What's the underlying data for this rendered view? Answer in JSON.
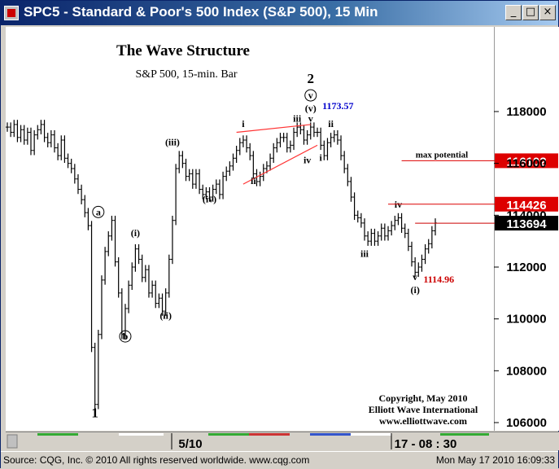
{
  "window": {
    "title": "SPC5 - Standard & Poor's 500 Index (S&P 500), 15 Min",
    "buttons": {
      "minimize": "_",
      "maximize": "□",
      "close": "×"
    }
  },
  "status": {
    "left": "Source: CQG, Inc. © 2010 All rights reserved worldwide. www.cqg.com",
    "right": "Mon May 17 2010 16:09:33"
  },
  "chart_data": {
    "type": "line",
    "title": "The Wave Structure",
    "subtitle": "S&P 500, 15-min. Bar",
    "copyright": [
      "Copyright, May 2010",
      "Elliott Wave International",
      "www.elliottwave.com"
    ],
    "ylim": [
      105500,
      120400
    ],
    "y_ticks": [
      106000,
      108000,
      110000,
      112000,
      114000,
      116000,
      118000
    ],
    "y_tick_labels": [
      "106000",
      "108000",
      "110000",
      "112000",
      "114000",
      "116000",
      "118000"
    ],
    "x_labels": [
      "5/10",
      "17 - 08 : 30"
    ],
    "series": [
      {
        "values": [
          117400,
          117200,
          117500,
          117000,
          117300,
          116900,
          117200,
          116500,
          117100,
          117300,
          117500,
          117000,
          116800,
          117100,
          116600,
          116300,
          116900,
          116200,
          116000,
          115800,
          115400,
          115000,
          114600,
          114100,
          113600,
          108900,
          106700,
          109400,
          111500,
          112600,
          113200,
          113800,
          112200,
          111000,
          109400,
          110400,
          111300,
          112000,
          112700,
          112300,
          111600,
          111900,
          111000,
          111300,
          110600,
          110800,
          110300,
          111000,
          112300,
          113800,
          115800,
          116300,
          116000,
          115500,
          115600,
          115200,
          115600,
          115000,
          114800,
          114900,
          114700,
          115000,
          115200,
          114800,
          115500,
          115700,
          115900,
          116200,
          116500,
          116800,
          116900,
          116600,
          116300,
          115600,
          115300,
          115500,
          115800,
          115900,
          116200,
          116600,
          116800,
          117000,
          117000,
          116600,
          116700,
          117200,
          117400,
          117300,
          116900,
          117100,
          117400,
          117200,
          117200,
          116700,
          116300,
          116800,
          117000,
          117100,
          116900,
          116300,
          115800,
          115300,
          114700,
          114000,
          113900,
          113700,
          113200,
          113000,
          113300,
          113000,
          113200,
          113500,
          113200,
          113400,
          113600,
          113800,
          113900,
          113500,
          113300,
          112800,
          112200,
          111800,
          112000,
          112300,
          112700,
          112900,
          113400,
          113700
        ]
      }
    ],
    "wave_labels": [
      {
        "text": "1",
        "x": 26,
        "y": 106200
      },
      {
        "text": "a",
        "x": 27,
        "y": 114000
      },
      {
        "text": "b",
        "x": 35,
        "y": 109200
      },
      {
        "text": "(i)",
        "x": 38,
        "y": 113200
      },
      {
        "text": "(ii)",
        "x": 47,
        "y": 110000
      },
      {
        "text": "(iii)",
        "x": 49,
        "y": 116700
      },
      {
        "text": "(iv)",
        "x": 60,
        "y": 114500
      },
      {
        "text": "i",
        "x": 70,
        "y": 117400
      },
      {
        "text": "ii",
        "x": 73,
        "y": 115200
      },
      {
        "text": "iii",
        "x": 86,
        "y": 117600
      },
      {
        "text": "iv",
        "x": 89,
        "y": 116000
      },
      {
        "text": "v",
        "x": 90,
        "y": 117600
      },
      {
        "text": "(v)",
        "x": 90,
        "y": 118000
      },
      {
        "text": "v",
        "x": 90,
        "y": 118500
      },
      {
        "text": "2",
        "x": 90,
        "y": 119100
      },
      {
        "text": "i",
        "x": 93,
        "y": 116100
      },
      {
        "text": "ii",
        "x": 96,
        "y": 117400
      },
      {
        "text": "iii",
        "x": 106,
        "y": 112400
      },
      {
        "text": "iv",
        "x": 116,
        "y": 114300
      },
      {
        "text": "v",
        "x": 121,
        "y": 111500
      },
      {
        "text": "(i)",
        "x": 121,
        "y": 111000
      }
    ],
    "circled_labels": [
      "a",
      "b",
      "v"
    ],
    "annotations": [
      {
        "text": "1173.57",
        "color": "#0000cc",
        "x": 93,
        "y": 118100
      },
      {
        "text": "1114.96",
        "color": "#cc0000",
        "x": 123,
        "y": 111400
      }
    ],
    "trendlines": [
      {
        "x1": 68,
        "y1": 117200,
        "x2": 90,
        "y2": 117500,
        "color": "#ff3333"
      },
      {
        "x1": 70,
        "y1": 115200,
        "x2": 92,
        "y2": 116700,
        "color": "#ff3333"
      }
    ],
    "levels": [
      {
        "label": "max potential",
        "value": 116102,
        "price_label": "116102",
        "bg": "#dd0000",
        "line_from_x": 117
      },
      {
        "value": 114426,
        "price_label": "114426",
        "bg": "#dd0000",
        "line_from_x": 113
      },
      {
        "value": 113694,
        "price_label": "113694",
        "bg": "#000000",
        "line_from_x": 121
      }
    ],
    "colors": {
      "line": "#000000",
      "accent_red": "#dd0000",
      "accent_blue": "#0000cc"
    },
    "grid": false
  }
}
